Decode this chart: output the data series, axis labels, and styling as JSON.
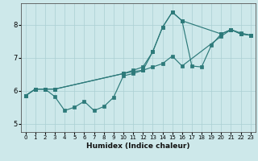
{
  "xlabel": "Humidex (Indice chaleur)",
  "background_color": "#cde8ea",
  "grid_color": "#aacfd2",
  "line_color": "#2d7a7a",
  "xlim": [
    -0.5,
    23.5
  ],
  "ylim": [
    4.75,
    8.65
  ],
  "xticks": [
    0,
    1,
    2,
    3,
    4,
    5,
    6,
    7,
    8,
    9,
    10,
    11,
    12,
    13,
    14,
    15,
    16,
    17,
    18,
    19,
    20,
    21,
    22,
    23
  ],
  "yticks": [
    5,
    6,
    7,
    8
  ],
  "line1_x": [
    0,
    1,
    2,
    3,
    4,
    5,
    6,
    7,
    8,
    9,
    10,
    11,
    12,
    13,
    14,
    15,
    16,
    17,
    18,
    19,
    20,
    21,
    22,
    23
  ],
  "line1_y": [
    5.85,
    6.05,
    6.05,
    5.82,
    5.4,
    5.5,
    5.68,
    5.4,
    5.52,
    5.8,
    6.45,
    6.52,
    6.62,
    7.18,
    7.92,
    8.38,
    8.12,
    6.75,
    6.72,
    7.38,
    7.72,
    7.85,
    7.72,
    7.68
  ],
  "line2_x": [
    0,
    1,
    2,
    3,
    10,
    11,
    12,
    13,
    14,
    15,
    16,
    20,
    21,
    22,
    23
  ],
  "line2_y": [
    5.85,
    6.05,
    6.05,
    6.05,
    6.52,
    6.58,
    6.62,
    6.72,
    6.82,
    7.05,
    6.75,
    7.65,
    7.85,
    7.75,
    7.68
  ],
  "line3_x": [
    0,
    1,
    2,
    3,
    10,
    11,
    12,
    13,
    14,
    15,
    16,
    20,
    21,
    22,
    23
  ],
  "line3_y": [
    5.85,
    6.05,
    6.05,
    6.05,
    6.52,
    6.62,
    6.72,
    7.18,
    7.92,
    8.38,
    8.12,
    7.72,
    7.85,
    7.72,
    7.68
  ]
}
